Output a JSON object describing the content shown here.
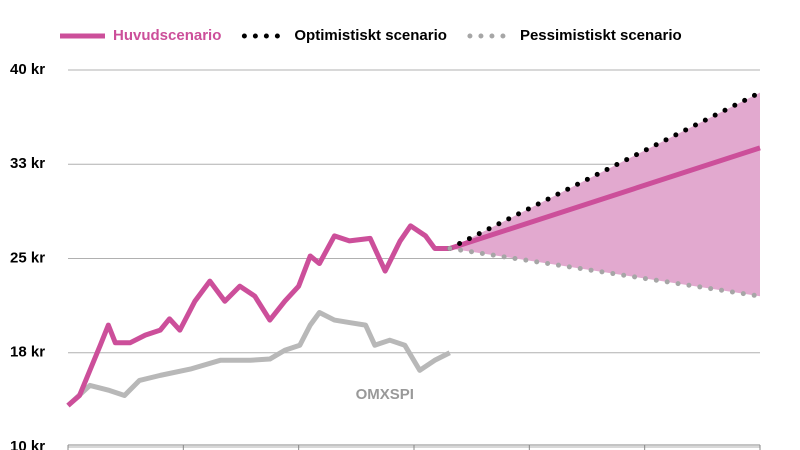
{
  "chart_data": {
    "type": "line",
    "xlim": [
      0,
      6
    ],
    "xticks": [
      0,
      1,
      2,
      3,
      4,
      5,
      6
    ],
    "ylim": [
      10,
      40
    ],
    "yticks": [
      {
        "value": 10,
        "label": "10 kr"
      },
      {
        "value": 17.5,
        "label": "18 kr"
      },
      {
        "value": 25,
        "label": "25 kr"
      },
      {
        "value": 32.5,
        "label": "33 kr"
      },
      {
        "value": 40,
        "label": "40 kr"
      }
    ],
    "grid": true,
    "band": {
      "between": [
        1,
        2
      ],
      "color": "#e2a9cf"
    },
    "series": [
      {
        "name": "Huvudscenario",
        "color": "#cc4f9a",
        "style": "solid",
        "x": [
          0,
          0.1,
          0.19,
          0.28,
          0.35,
          0.41,
          0.54,
          0.67,
          0.8,
          0.88,
          0.97,
          1.1,
          1.23,
          1.36,
          1.49,
          1.62,
          1.75,
          1.88,
          2.0,
          2.1,
          2.18,
          2.31,
          2.44,
          2.62,
          2.75,
          2.88,
          2.97,
          3.1,
          3.18,
          3.31,
          6
        ],
        "values": [
          13.3,
          14.1,
          16.1,
          18.1,
          19.7,
          18.3,
          18.3,
          18.9,
          19.3,
          20.2,
          19.3,
          21.6,
          23.2,
          21.6,
          22.8,
          22.0,
          20.1,
          21.6,
          22.8,
          25.2,
          24.6,
          26.8,
          26.4,
          26.6,
          24.0,
          26.4,
          27.6,
          26.8,
          25.8,
          25.8,
          33.8
        ]
      },
      {
        "name": "Optimistiskt scenario",
        "color": "#000000",
        "style": "dotted",
        "x": [
          3.31,
          6
        ],
        "values": [
          25.8,
          38.2
        ]
      },
      {
        "name": "Pessimistiskt scenario",
        "color": "#a6a6a6",
        "style": "dotted",
        "x": [
          3.31,
          6
        ],
        "values": [
          25.8,
          22.0
        ]
      },
      {
        "name": "OMXSPI",
        "color": "#b8b8b8",
        "style": "solid",
        "label": "inline",
        "x": [
          0,
          0.19,
          0.36,
          0.49,
          0.62,
          0.8,
          1.06,
          1.32,
          1.58,
          1.75,
          1.88,
          2.01,
          2.1,
          2.18,
          2.31,
          2.44,
          2.58,
          2.66,
          2.79,
          2.92,
          3.05,
          3.18,
          3.31
        ],
        "values": [
          13.3,
          14.9,
          14.5,
          14.1,
          15.3,
          15.7,
          16.2,
          16.9,
          16.9,
          17.0,
          17.7,
          18.1,
          19.7,
          20.7,
          20.1,
          19.9,
          19.7,
          18.1,
          18.5,
          18.1,
          16.1,
          16.9,
          17.5
        ]
      }
    ]
  }
}
